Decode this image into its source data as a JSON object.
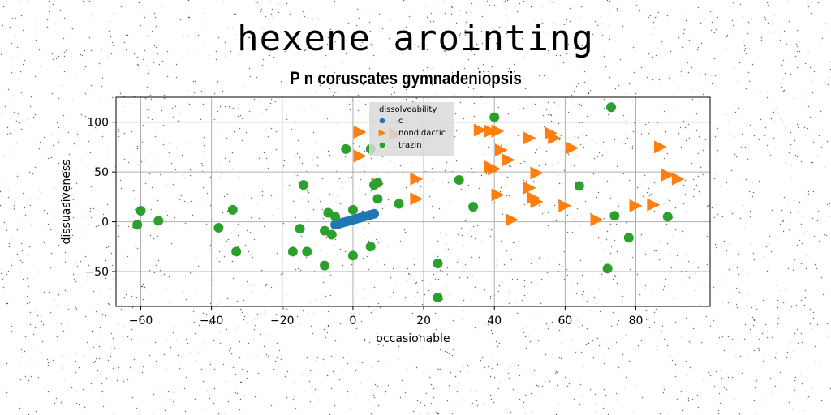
{
  "title": "hexene arointing",
  "subtitle": "P n coruscates gymnadeniopsis",
  "chart_data": {
    "type": "scatter",
    "xlabel": "occasionable",
    "ylabel": "dissuasiveness",
    "xlim": [
      -67,
      101
    ],
    "ylim": [
      -85,
      125
    ],
    "xticks": [
      -60,
      -40,
      -20,
      0,
      20,
      40,
      60,
      80
    ],
    "yticks": [
      -50,
      0,
      50,
      100
    ],
    "grid": true,
    "legend": {
      "title": "dissolveability",
      "placement": "top-center"
    },
    "colors": {
      "c": "#1f77b4",
      "nondidactic": "#ff7f0e",
      "trazin": "#2ca02c"
    },
    "series": [
      {
        "name": "c",
        "marker": "circle",
        "x": [
          -5,
          -4,
          -3,
          -2,
          -1,
          0,
          1,
          2,
          3,
          4,
          5,
          6
        ],
        "y": [
          -3,
          -2,
          -1,
          0,
          1,
          2,
          3,
          4,
          5,
          6,
          7,
          8
        ]
      },
      {
        "name": "nondidactic",
        "marker": "triangle-right",
        "x": [
          2,
          2,
          12,
          7,
          18,
          18,
          36,
          39,
          41,
          42,
          44,
          50,
          52,
          40,
          39,
          41,
          50,
          51,
          52,
          45,
          56,
          57,
          62,
          60,
          69,
          80,
          85,
          87,
          89,
          92
        ],
        "y": [
          90,
          66,
          88,
          38,
          43,
          23,
          92,
          91,
          91,
          72,
          62,
          84,
          49,
          53,
          55,
          27,
          34,
          24,
          20,
          2,
          89,
          84,
          74,
          16,
          2,
          16,
          17,
          75,
          47,
          43
        ]
      },
      {
        "name": "trazin",
        "marker": "circle",
        "x": [
          -61,
          -60,
          -55,
          -38,
          -34,
          -33,
          -17,
          -15,
          -14,
          -13,
          -8,
          -8,
          -7,
          -6,
          -5,
          0,
          0,
          5,
          6,
          7,
          7,
          13,
          24,
          24,
          30,
          34,
          40,
          64,
          72,
          73,
          74,
          78,
          89,
          -2,
          5
        ],
        "y": [
          -3,
          11,
          1,
          -6,
          12,
          -30,
          -30,
          -7,
          37,
          -30,
          -9,
          -44,
          9,
          -13,
          5,
          -34,
          12,
          -25,
          37,
          39,
          23,
          18,
          -42,
          -76,
          42,
          15,
          105,
          36,
          -47,
          115,
          6,
          -16,
          5,
          73,
          73
        ]
      }
    ]
  }
}
